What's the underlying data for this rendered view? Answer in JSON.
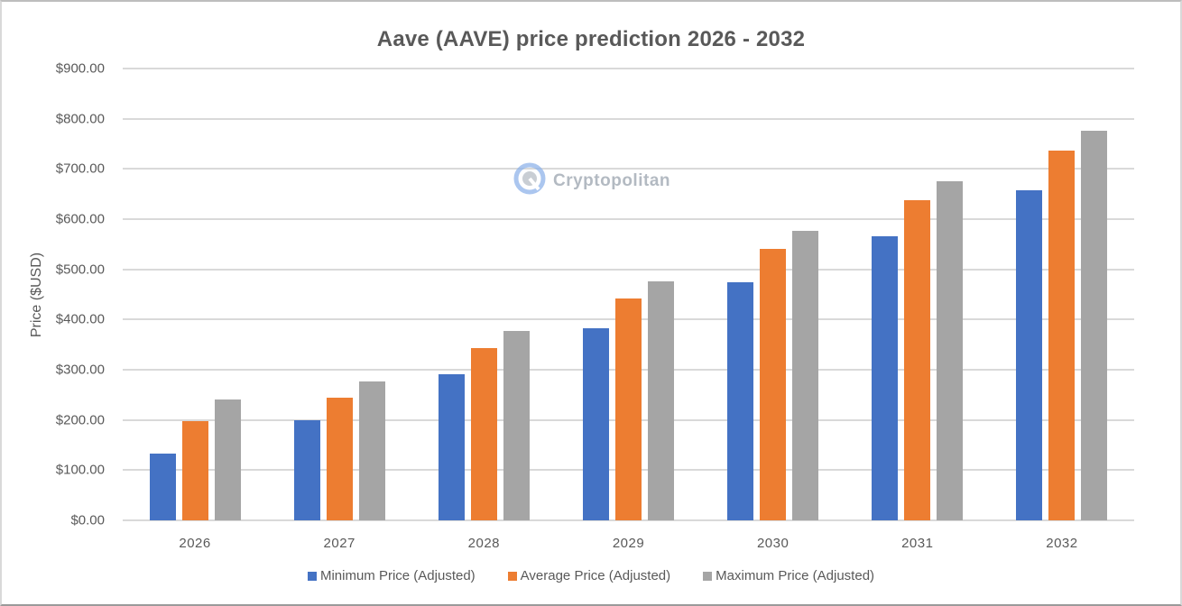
{
  "chart": {
    "title": "Aave (AAVE) price prediction 2026 - 2032",
    "ylabel": "Price ($USD)",
    "watermark": "Cryptopolitan",
    "y_ticks": [
      "$900.00",
      "$800.00",
      "$700.00",
      "$600.00",
      "$500.00",
      "$400.00",
      "$300.00",
      "$200.00",
      "$100.00",
      "$0.00"
    ],
    "x_ticks": [
      "2026",
      "2027",
      "2028",
      "2029",
      "2030",
      "2031",
      "2032"
    ],
    "legend": [
      {
        "label": "Minimum Price (Adjusted)",
        "color": "#4472c4"
      },
      {
        "label": "Average Price (Adjusted)",
        "color": "#ed7d31"
      },
      {
        "label": "Maximum Price (Adjusted)",
        "color": "#a5a5a5"
      }
    ]
  },
  "chart_data": {
    "type": "bar",
    "title": "Aave (AAVE) price prediction 2026 - 2032",
    "xlabel": "",
    "ylabel": "Price ($USD)",
    "ylim": [
      0,
      900
    ],
    "y_tick_step": 100,
    "grid": true,
    "legend_position": "bottom",
    "categories": [
      "2026",
      "2027",
      "2028",
      "2029",
      "2030",
      "2031",
      "2032"
    ],
    "series": [
      {
        "name": "Minimum Price (Adjusted)",
        "color": "#4472c4",
        "values": [
          133,
          200,
          291,
          383,
          474,
          566,
          657
        ]
      },
      {
        "name": "Average Price (Adjusted)",
        "color": "#ed7d31",
        "values": [
          198,
          244,
          343,
          442,
          541,
          638,
          736
        ]
      },
      {
        "name": "Maximum Price (Adjusted)",
        "color": "#a5a5a5",
        "values": [
          241,
          277,
          377,
          476,
          577,
          675,
          776
        ]
      }
    ]
  }
}
